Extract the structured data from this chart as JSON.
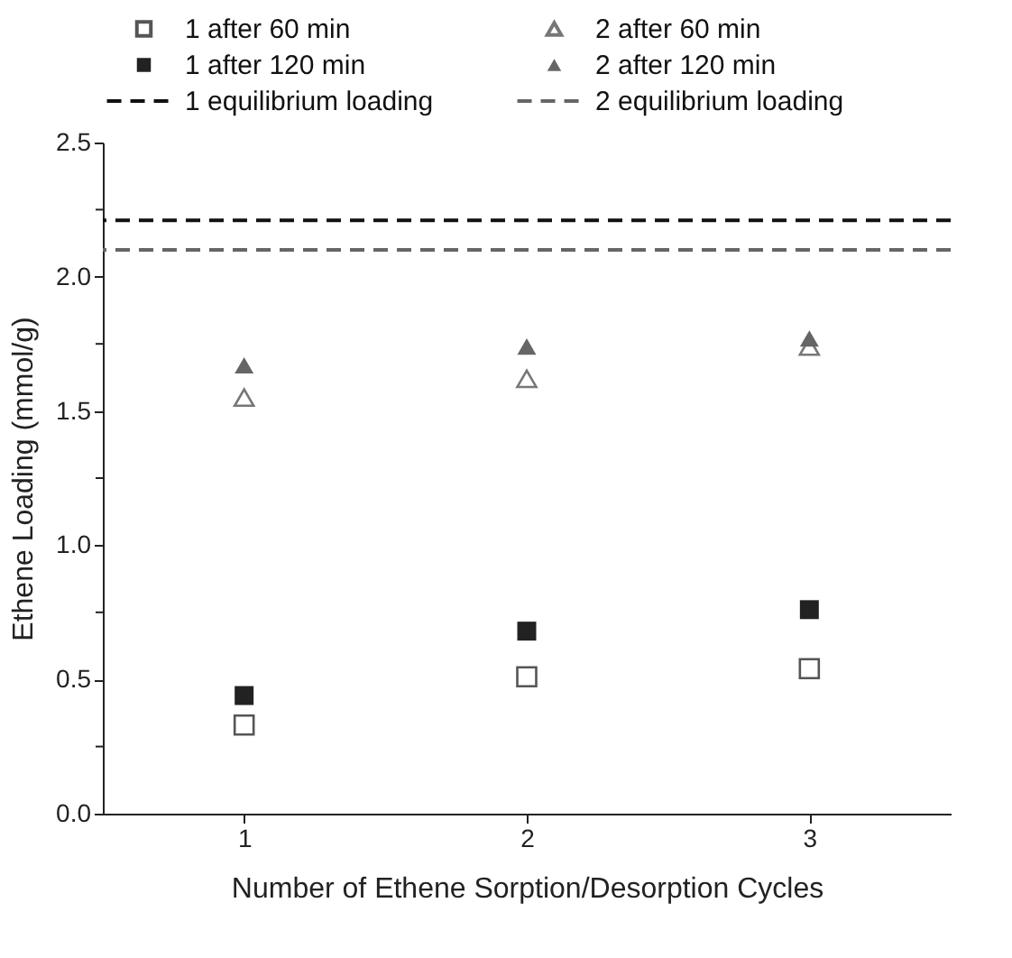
{
  "chart_data": {
    "type": "scatter",
    "xlabel": "Number of Ethene Sorption/Desorption Cycles",
    "ylabel": "Ethene Loading (mmol/g)",
    "x": [
      1,
      2,
      3
    ],
    "xlim": [
      0.5,
      3.5
    ],
    "xticks": [
      {
        "value": 1,
        "label": "1"
      },
      {
        "value": 2,
        "label": "2"
      },
      {
        "value": 3,
        "label": "3"
      }
    ],
    "ylim": [
      0,
      2.5
    ],
    "yticks": [
      {
        "value": 0,
        "label": "0.0"
      },
      {
        "value": 0.25,
        "label": null
      },
      {
        "value": 0.5,
        "label": "0.5"
      },
      {
        "value": 0.75,
        "label": null
      },
      {
        "value": 1,
        "label": "1.0"
      },
      {
        "value": 1.25,
        "label": null
      },
      {
        "value": 1.5,
        "label": "1.5"
      },
      {
        "value": 1.75,
        "label": null
      },
      {
        "value": 2,
        "label": "2.0"
      },
      {
        "value": 2.25,
        "label": null
      },
      {
        "value": 2.5,
        "label": "2.5"
      }
    ],
    "series": [
      {
        "name": "1 after 60 min",
        "color": "#555555",
        "marker": "square",
        "values": [
          0.33,
          0.51,
          0.54
        ]
      },
      {
        "name": "1 after 120 min",
        "color": "#222222",
        "marker": "square",
        "values": [
          0.44,
          0.68,
          0.76
        ]
      },
      {
        "name": "2 after 60 min",
        "color": "#777777",
        "marker": "triangle",
        "values": [
          1.55,
          1.62,
          1.74
        ]
      },
      {
        "name": "2 after 120 min",
        "color": "#666666",
        "marker": "triangle",
        "values": [
          1.67,
          1.74,
          1.77
        ]
      }
    ],
    "ref_lines": [
      {
        "axis": "y",
        "value": 2.21,
        "label": "1 equilibrium loading",
        "color": "#111111",
        "line_style": "dashed"
      },
      {
        "axis": "y",
        "value": 2.1,
        "label": "2 equilibrium loading",
        "color": "#666666",
        "line_style": "dashed"
      }
    ],
    "legend": "top",
    "grid": false
  }
}
